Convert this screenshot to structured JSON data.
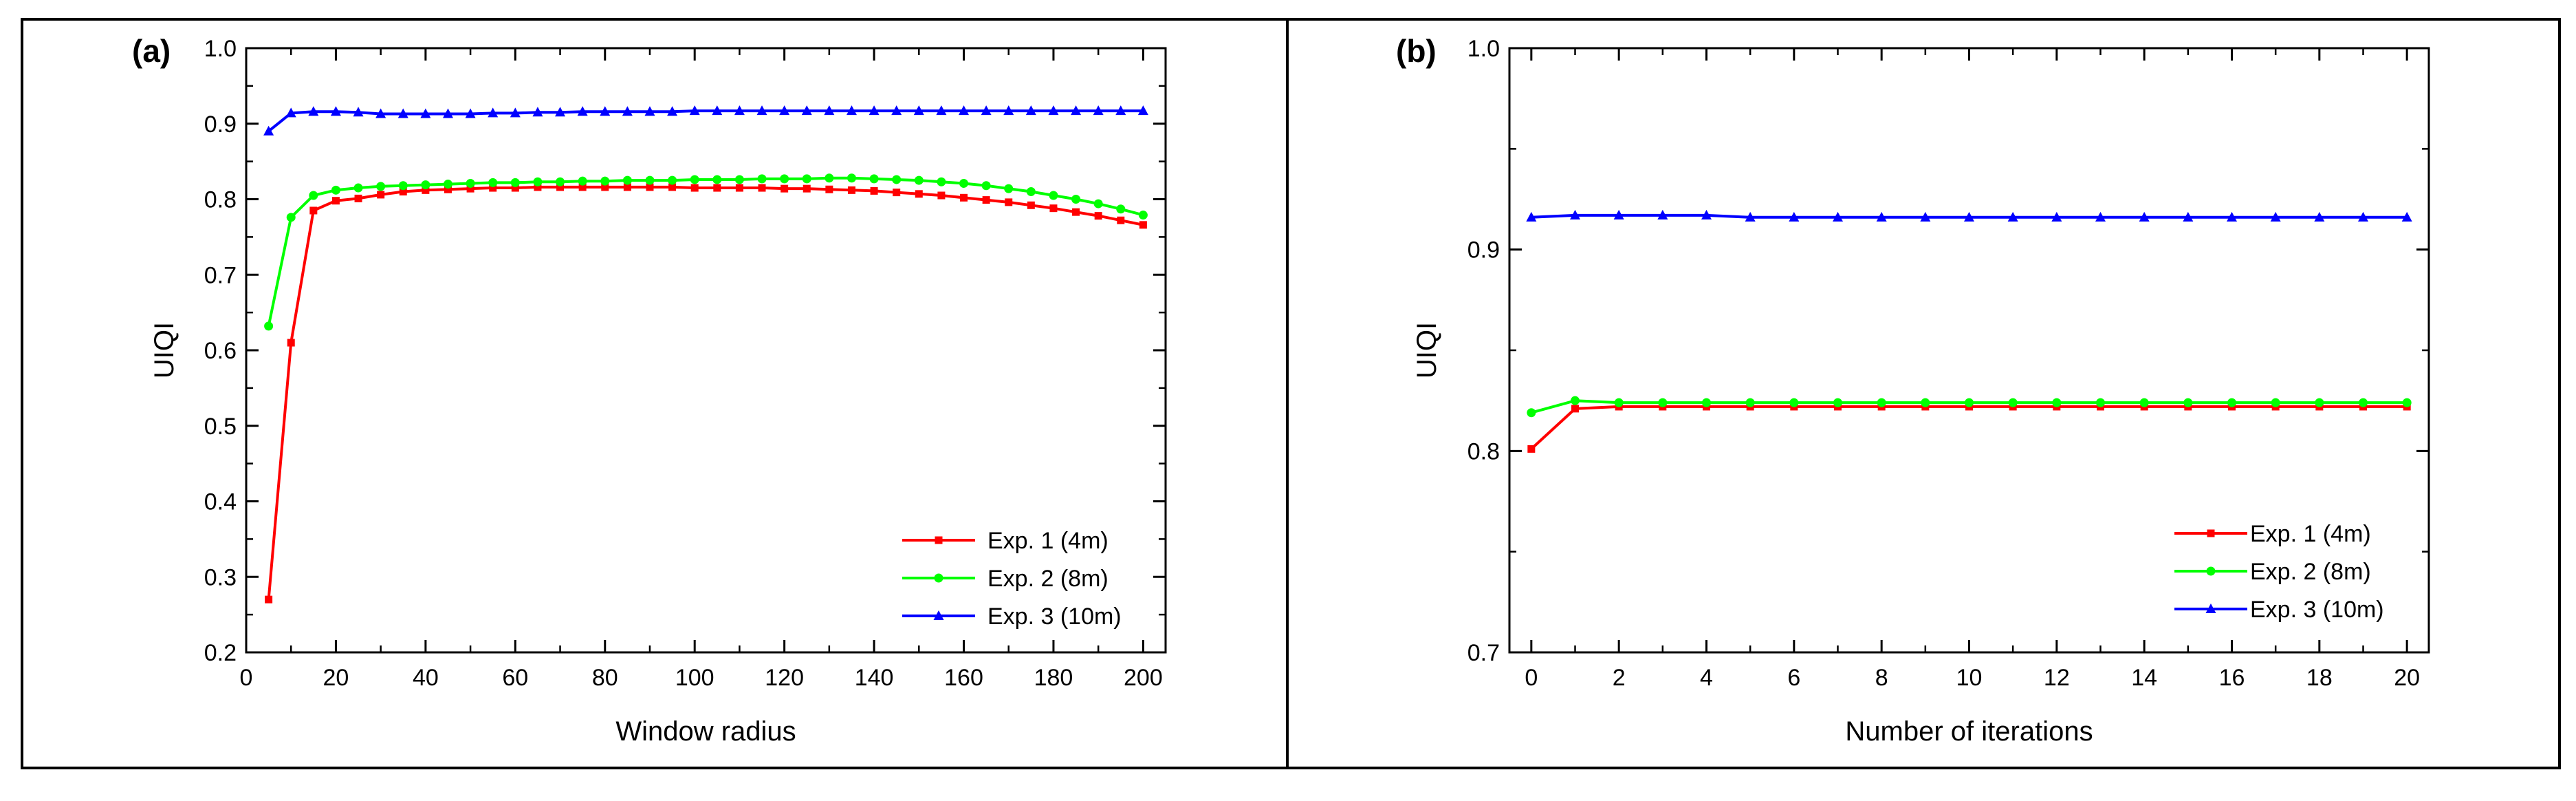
{
  "chart_data": [
    {
      "panel_label": "(a)",
      "type": "line",
      "xlabel": "Window radius",
      "ylabel": "UIQI",
      "xlim": [
        0,
        205
      ],
      "ylim": [
        0.2,
        1.0
      ],
      "xticks": [
        0,
        20,
        40,
        60,
        80,
        100,
        120,
        140,
        160,
        180,
        200
      ],
      "yticks": [
        0.2,
        0.3,
        0.4,
        0.5,
        0.6,
        0.7,
        0.8,
        0.9,
        1.0
      ],
      "xtick_labels": [
        "0",
        "20",
        "40",
        "60",
        "80",
        "100",
        "120",
        "140",
        "160",
        "180",
        "200"
      ],
      "ytick_labels": [
        "0.2",
        "0.3",
        "0.4",
        "0.5",
        "0.6",
        "0.7",
        "0.8",
        "0.9",
        "1.0"
      ],
      "legend_position": "bottom-right",
      "x": [
        5,
        10,
        15,
        20,
        25,
        30,
        35,
        40,
        45,
        50,
        55,
        60,
        65,
        70,
        75,
        80,
        85,
        90,
        95,
        100,
        105,
        110,
        115,
        120,
        125,
        130,
        135,
        140,
        145,
        150,
        155,
        160,
        165,
        170,
        175,
        180,
        185,
        190,
        195,
        200
      ],
      "series": [
        {
          "name": "Exp. 1 (4m)",
          "color": "#ff0000",
          "marker": "square",
          "values": [
            0.27,
            0.61,
            0.785,
            0.798,
            0.801,
            0.806,
            0.81,
            0.812,
            0.813,
            0.814,
            0.815,
            0.815,
            0.816,
            0.816,
            0.816,
            0.816,
            0.816,
            0.816,
            0.816,
            0.815,
            0.815,
            0.815,
            0.815,
            0.814,
            0.814,
            0.813,
            0.812,
            0.811,
            0.809,
            0.807,
            0.805,
            0.802,
            0.799,
            0.796,
            0.792,
            0.788,
            0.783,
            0.778,
            0.772,
            0.766
          ]
        },
        {
          "name": "Exp. 2 (8m)",
          "color": "#00ff00",
          "marker": "circle",
          "values": [
            0.632,
            0.776,
            0.805,
            0.812,
            0.815,
            0.817,
            0.818,
            0.819,
            0.82,
            0.821,
            0.822,
            0.822,
            0.823,
            0.823,
            0.824,
            0.824,
            0.825,
            0.825,
            0.825,
            0.826,
            0.826,
            0.826,
            0.827,
            0.827,
            0.827,
            0.828,
            0.828,
            0.827,
            0.826,
            0.825,
            0.823,
            0.821,
            0.818,
            0.814,
            0.81,
            0.805,
            0.8,
            0.794,
            0.787,
            0.779
          ]
        },
        {
          "name": "Exp. 3 (10m)",
          "color": "#0000ff",
          "marker": "triangle",
          "values": [
            0.89,
            0.914,
            0.916,
            0.916,
            0.915,
            0.913,
            0.913,
            0.913,
            0.913,
            0.913,
            0.914,
            0.914,
            0.915,
            0.915,
            0.916,
            0.916,
            0.916,
            0.916,
            0.916,
            0.917,
            0.917,
            0.917,
            0.917,
            0.917,
            0.917,
            0.917,
            0.917,
            0.917,
            0.917,
            0.917,
            0.917,
            0.917,
            0.917,
            0.917,
            0.917,
            0.917,
            0.917,
            0.917,
            0.917,
            0.917
          ]
        }
      ]
    },
    {
      "panel_label": "(b)",
      "type": "line",
      "xlabel": "Number of iterations",
      "ylabel": "UIQI",
      "xlim": [
        -0.5,
        20.5
      ],
      "ylim": [
        0.7,
        1.0
      ],
      "xticks": [
        0,
        2,
        4,
        6,
        8,
        10,
        12,
        14,
        16,
        18,
        20
      ],
      "yticks": [
        0.7,
        0.8,
        0.9,
        1.0
      ],
      "xtick_labels": [
        "0",
        "2",
        "4",
        "6",
        "8",
        "10",
        "12",
        "14",
        "16",
        "18",
        "20"
      ],
      "ytick_labels": [
        "0.7",
        "0.8",
        "0.9",
        "1.0"
      ],
      "legend_position": "bottom-right",
      "x": [
        0,
        1,
        2,
        3,
        4,
        5,
        6,
        7,
        8,
        9,
        10,
        11,
        12,
        13,
        14,
        15,
        16,
        17,
        18,
        19,
        20
      ],
      "series": [
        {
          "name": "Exp. 1 (4m)",
          "color": "#ff0000",
          "marker": "square",
          "values": [
            0.801,
            0.821,
            0.822,
            0.822,
            0.822,
            0.822,
            0.822,
            0.822,
            0.822,
            0.822,
            0.822,
            0.822,
            0.822,
            0.822,
            0.822,
            0.822,
            0.822,
            0.822,
            0.822,
            0.822,
            0.822
          ]
        },
        {
          "name": "Exp. 2 (8m)",
          "color": "#00ff00",
          "marker": "circle",
          "values": [
            0.819,
            0.825,
            0.824,
            0.824,
            0.824,
            0.824,
            0.824,
            0.824,
            0.824,
            0.824,
            0.824,
            0.824,
            0.824,
            0.824,
            0.824,
            0.824,
            0.824,
            0.824,
            0.824,
            0.824,
            0.824
          ]
        },
        {
          "name": "Exp. 3 (10m)",
          "color": "#0000ff",
          "marker": "triangle",
          "values": [
            0.916,
            0.917,
            0.917,
            0.917,
            0.917,
            0.916,
            0.916,
            0.916,
            0.916,
            0.916,
            0.916,
            0.916,
            0.916,
            0.916,
            0.916,
            0.916,
            0.916,
            0.916,
            0.916,
            0.916,
            0.916
          ]
        }
      ]
    }
  ]
}
